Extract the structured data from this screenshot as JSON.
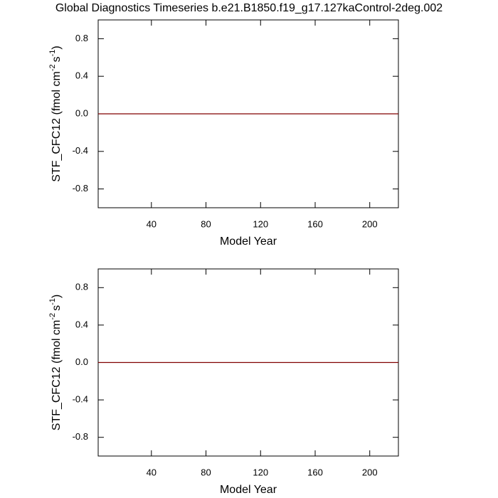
{
  "title": "Global Diagnostics Timeseries b.e21.B1850.f19_g17.127kaControl-2deg.002",
  "chart_data": [
    {
      "type": "line",
      "xlabel": "Model Year",
      "ylabel": [
        "STF_CFC12 (fmol cm",
        "-2",
        "s",
        "-1",
        ")"
      ],
      "x": [
        1,
        221
      ],
      "series": [
        {
          "color": "#800000",
          "values": [
            0,
            0
          ]
        }
      ],
      "xlim": [
        1,
        221
      ],
      "xticks": [
        40,
        80,
        120,
        160,
        200
      ],
      "ylim": [
        -1,
        1
      ],
      "yticks": [
        -0.8,
        -0.4,
        {
          "value": 0,
          "label": "0.0"
        },
        0.4,
        0.8
      ]
    },
    {
      "type": "line",
      "xlabel": "Model Year",
      "ylabel": [
        "STF_CFC12 (fmol cm",
        "-2",
        "s",
        "-1",
        ")"
      ],
      "x": [
        1,
        221
      ],
      "series": [
        {
          "color": "#800000",
          "values": [
            0,
            0
          ]
        }
      ],
      "xlim": [
        1,
        221
      ],
      "xticks": [
        40,
        80,
        120,
        160,
        200
      ],
      "ylim": [
        -1,
        1
      ],
      "yticks": [
        -0.8,
        -0.4,
        {
          "value": 0,
          "label": "0.0"
        },
        0.4,
        0.8
      ]
    }
  ]
}
